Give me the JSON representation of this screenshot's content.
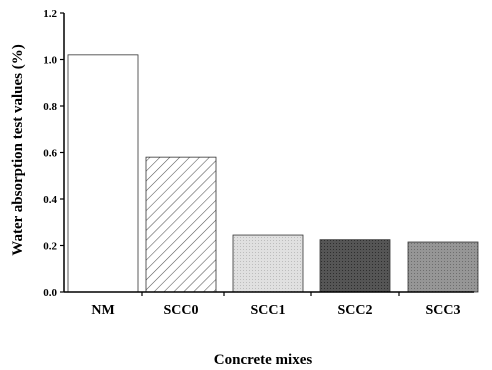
{
  "chart_data": {
    "type": "bar",
    "xlabel": "Concrete mixes",
    "ylabel": "Water absorption test values (%)",
    "categories": [
      "NM",
      "SCC0",
      "SCC1",
      "SCC2",
      "SCC3"
    ],
    "values": [
      1.02,
      0.58,
      0.245,
      0.225,
      0.215
    ],
    "ylim": [
      0,
      1.2
    ],
    "yticks": [
      "0.0",
      "0.2",
      "0.4",
      "0.6",
      "0.8",
      "1.0",
      "1.2"
    ],
    "grid": false,
    "bar_fills": [
      "white",
      "hatched",
      "#d9d9d9",
      "#4d4d4d",
      "#8c8c8c"
    ]
  }
}
